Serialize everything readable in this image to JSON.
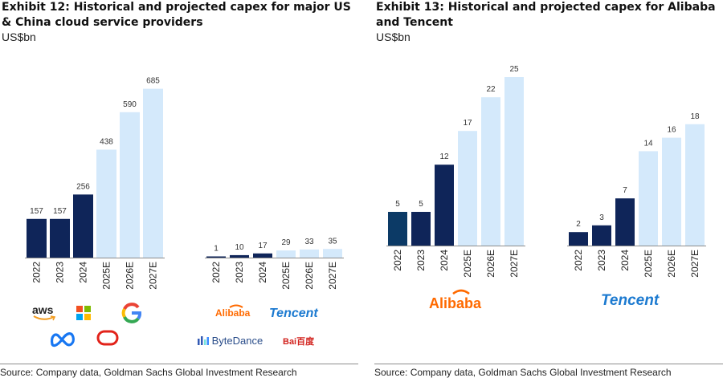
{
  "colors": {
    "historical": "#0f2559",
    "historical_alt": "#0c3a66",
    "projected": "#d4e9fb",
    "baseline": "#8c8c8c",
    "label": "#333333"
  },
  "left": {
    "title": "Exhibit 12: Historical and projected capex for major US & China cloud service providers",
    "unit": "US$bn",
    "source": "Source: Company data, Goldman Sachs Global Investment Research",
    "logos": {
      "aws": "aws",
      "alibaba": "Alibaba",
      "tencent": "Tencent",
      "bytedance": "ByteDance",
      "baidu": "Bai百度"
    }
  },
  "right": {
    "title": "Exhibit 13: Historical and projected capex for Alibaba and Tencent",
    "unit": "US$bn",
    "source": "Source: Company data, Goldman Sachs Global Investment Research",
    "logos": {
      "alibaba": "Alibaba",
      "tencent": "Tencent"
    }
  },
  "chart_data": [
    {
      "type": "bar",
      "title": "Exhibit 12: Historical and projected capex for major US & China cloud service providers",
      "ylabel": "US$bn",
      "ylim": [
        0,
        700
      ],
      "groups": [
        {
          "name": "US cloud service providers",
          "categories": [
            "2022",
            "2023",
            "2024",
            "2025E",
            "2026E",
            "2027E"
          ],
          "values": [
            157,
            157,
            256,
            438,
            590,
            685
          ],
          "projected": [
            false,
            false,
            false,
            true,
            true,
            true
          ]
        },
        {
          "name": "China cloud service providers",
          "categories": [
            "2022",
            "2023",
            "2024",
            "2025E",
            "2026E",
            "2027E"
          ],
          "values": [
            1,
            10,
            17,
            29,
            33,
            35
          ],
          "projected": [
            false,
            false,
            false,
            true,
            true,
            true
          ]
        }
      ]
    },
    {
      "type": "bar",
      "title": "Exhibit 13: Historical and projected capex for Alibaba and Tencent",
      "ylabel": "US$bn",
      "ylim": [
        0,
        25
      ],
      "groups": [
        {
          "name": "Alibaba",
          "categories": [
            "2022",
            "2023",
            "2024",
            "2025E",
            "2026E",
            "2027E"
          ],
          "values": [
            5,
            5,
            12,
            17,
            22,
            25
          ],
          "projected": [
            false,
            false,
            false,
            true,
            true,
            true
          ]
        },
        {
          "name": "Tencent",
          "categories": [
            "2022",
            "2023",
            "2024",
            "2025E",
            "2026E",
            "2027E"
          ],
          "values": [
            2,
            3,
            7,
            14,
            16,
            18
          ],
          "projected": [
            false,
            false,
            false,
            true,
            true,
            true
          ]
        }
      ]
    }
  ]
}
